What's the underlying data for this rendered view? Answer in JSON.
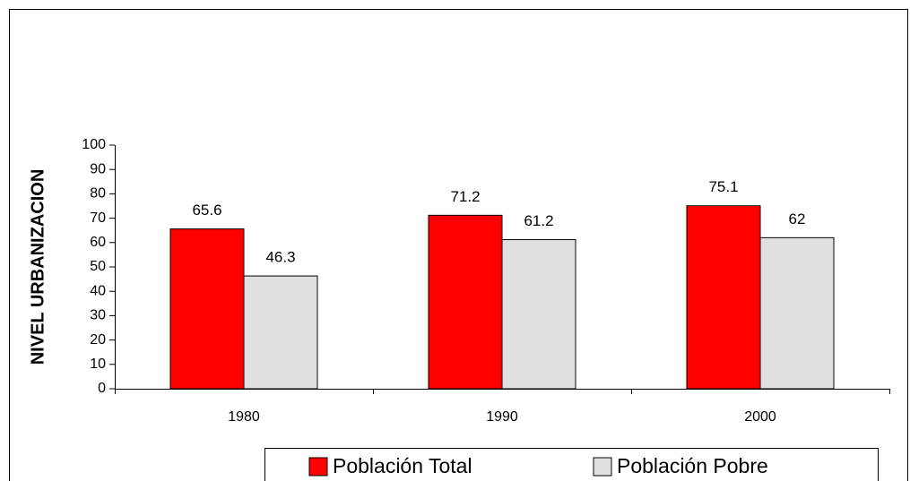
{
  "chart_data": {
    "type": "bar",
    "y_label": "NIVEL URBANIZACION",
    "categories": [
      "1980",
      "1990",
      "2000"
    ],
    "series": [
      {
        "name": "Población Total",
        "color": "#ff0000",
        "values": [
          65.6,
          71.2,
          75.1
        ]
      },
      {
        "name": "Población Pobre",
        "color": "#e0e0e0",
        "values": [
          46.3,
          61.2,
          62
        ]
      }
    ],
    "ylim": [
      0,
      100
    ],
    "yticks": [
      0,
      10,
      20,
      30,
      40,
      50,
      60,
      70,
      80,
      90,
      100
    ],
    "legend": "bottom"
  }
}
